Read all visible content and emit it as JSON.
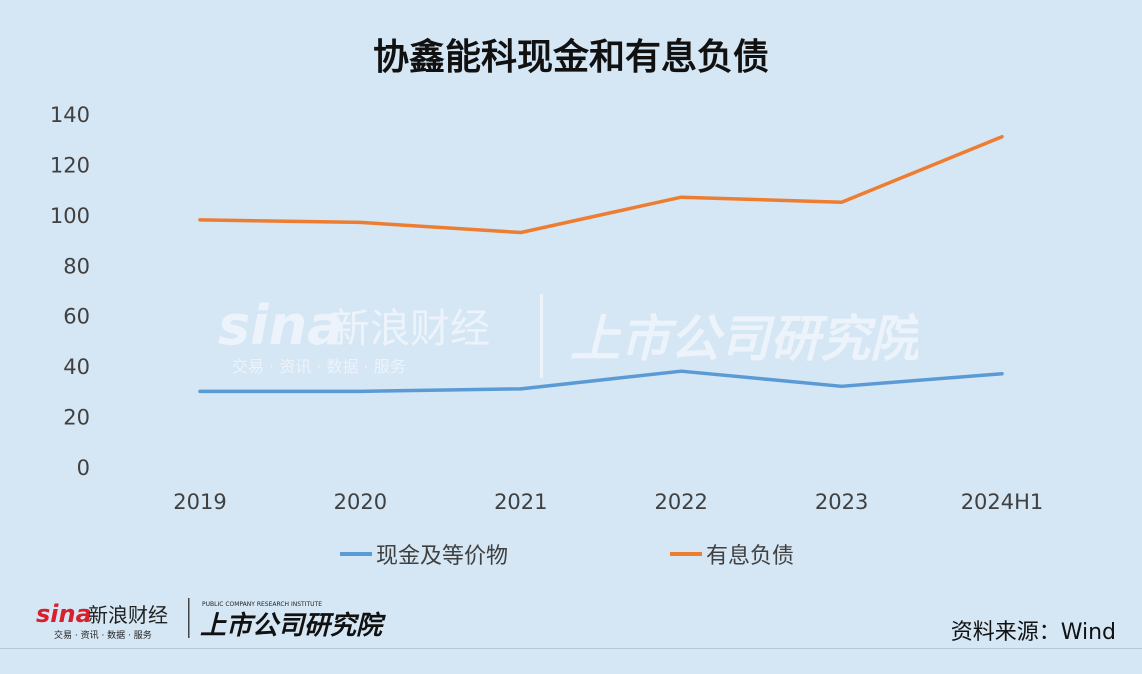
{
  "title": "协鑫能科现金和有息负债",
  "source": "资料来源：Wind",
  "brand": {
    "sina": "sina",
    "cn_name": "新浪财经",
    "services": "交易 · 资讯 · 数据 · 服务",
    "institute": "上市公司研究院",
    "institute_en": "PUBLIC COMPANY RESEARCH INSTITUTE"
  },
  "colors": {
    "cash": "#5b9bd5",
    "debt": "#ed7d31",
    "background": "#d5e6f4"
  },
  "chart_data": {
    "type": "line",
    "title": "协鑫能科现金和有息负债",
    "categories": [
      "2019",
      "2020",
      "2021",
      "2022",
      "2023",
      "2024H1"
    ],
    "ylim": [
      0,
      140
    ],
    "yticks": [
      0,
      20,
      40,
      60,
      80,
      100,
      120,
      140
    ],
    "grid": false,
    "legend_position": "bottom",
    "series": [
      {
        "name": "现金及等价物",
        "values": [
          30,
          30,
          31,
          38,
          32,
          37
        ],
        "color": "#5b9bd5"
      },
      {
        "name": "有息负债",
        "values": [
          98,
          97,
          93,
          107,
          105,
          131
        ],
        "color": "#ed7d31"
      }
    ]
  }
}
